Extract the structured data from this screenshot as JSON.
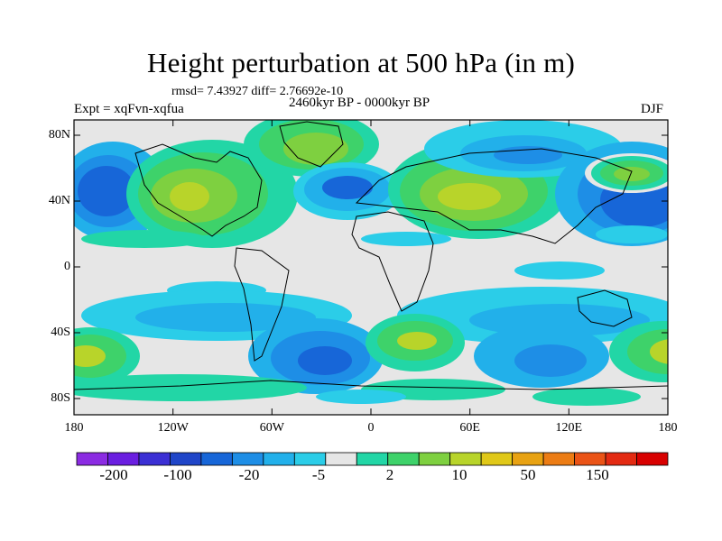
{
  "title": "Height perturbation at 500 hPa (in m)",
  "stats": "rmsd= 7.43927 diff= 2.76692e-10",
  "left_label": "Expt = xqFvn-xqfua",
  "center_label": "2460kyr BP - 0000kyr BP",
  "right_label": "DJF",
  "lat_ticks": [
    "80N",
    "40N",
    "0",
    "40S",
    "80S"
  ],
  "lon_ticks": [
    "180",
    "120W",
    "60W",
    "0",
    "60E",
    "120E",
    "180"
  ],
  "colorbar": {
    "colors": [
      "#8b2be2",
      "#6a1ee0",
      "#3b2fd4",
      "#1f45c8",
      "#1766d8",
      "#1e8ee6",
      "#22b0ea",
      "#2bcde8",
      "#e6e6e6",
      "#22d6a6",
      "#3ed26a",
      "#7ed040",
      "#b8d42a",
      "#e0c818",
      "#e8a212",
      "#ec7c14",
      "#ea5316",
      "#e32a12",
      "#d80000"
    ],
    "labels": [
      "-200",
      "-100",
      "-20",
      "-5",
      "2",
      "10",
      "50",
      "150"
    ]
  }
}
